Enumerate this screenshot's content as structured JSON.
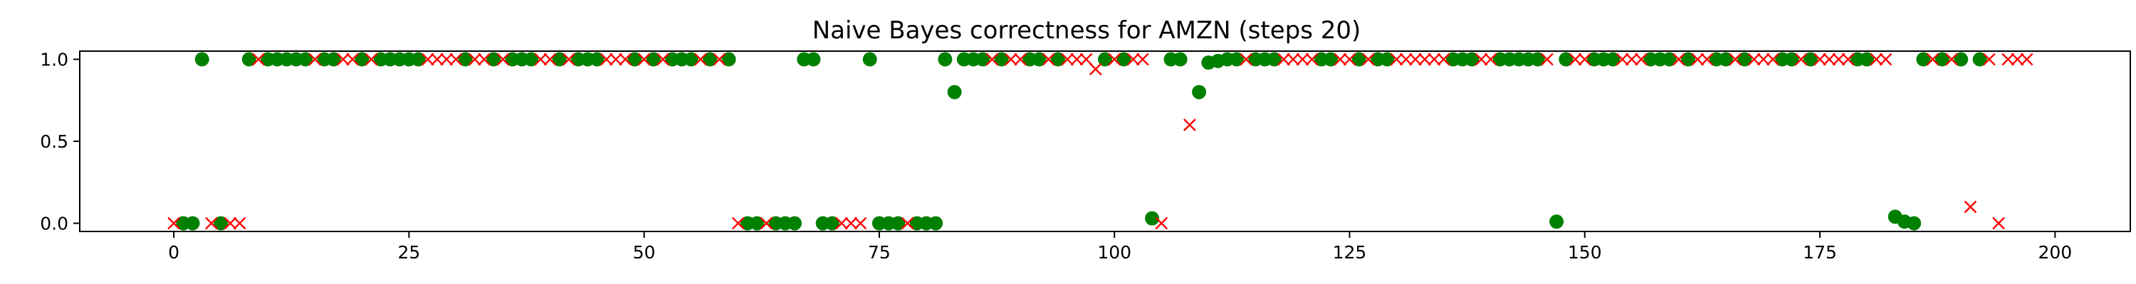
{
  "chart_data": {
    "type": "scatter",
    "title": "Naive Bayes correctness for AMZN (steps 20)",
    "xlabel": "",
    "ylabel": "",
    "xlim": [
      -10,
      208
    ],
    "ylim": [
      -0.05,
      1.05
    ],
    "x_ticks": [
      0,
      25,
      50,
      75,
      100,
      125,
      150,
      175,
      200
    ],
    "x_tick_labels": [
      "0",
      "25",
      "50",
      "75",
      "100",
      "125",
      "150",
      "175",
      "200"
    ],
    "y_ticks": [
      0.0,
      0.5,
      1.0
    ],
    "y_tick_labels": [
      "0.0",
      "0.5",
      "1.0"
    ],
    "grid": false,
    "legend": "none",
    "colors": {
      "correct": "#008000",
      "incorrect": "#ff0000"
    },
    "series": [
      {
        "marker": "circle",
        "color": "#008000",
        "x": [
          1,
          2,
          3,
          5,
          8,
          10,
          11,
          12,
          13,
          14,
          16,
          17,
          20,
          22,
          23,
          24,
          25,
          26,
          31,
          34,
          36,
          37,
          38,
          41,
          43,
          44,
          45,
          49,
          51,
          53,
          54,
          55,
          57,
          59,
          61,
          62,
          64,
          65,
          66,
          67,
          68,
          69,
          70,
          74,
          75,
          76,
          77,
          79,
          80,
          81,
          82,
          83,
          84,
          85,
          86,
          88,
          91,
          92,
          94,
          99,
          101,
          104,
          106,
          107,
          109,
          110,
          111,
          112,
          113,
          115,
          116,
          117,
          122,
          123,
          126,
          128,
          129,
          136,
          137,
          138,
          141,
          142,
          143,
          144,
          145,
          147,
          148,
          151,
          152,
          153,
          157,
          158,
          159,
          161,
          164,
          165,
          167,
          171,
          172,
          174,
          179,
          180,
          183,
          184,
          185,
          186,
          188,
          190,
          192
        ],
        "y": [
          0,
          0,
          1,
          0,
          1,
          1,
          1,
          1,
          1,
          1,
          1,
          1,
          1,
          1,
          1,
          1,
          1,
          1,
          1,
          1,
          1,
          1,
          1,
          1,
          1,
          1,
          1,
          1,
          1,
          1,
          1,
          1,
          1,
          1,
          0,
          0,
          0,
          0,
          0,
          1,
          1,
          0,
          0,
          1,
          0,
          0,
          0,
          0,
          0,
          0,
          1,
          0.8,
          1,
          1,
          1,
          1,
          1,
          1,
          1,
          1,
          1,
          0.03,
          1,
          1,
          0.8,
          0.98,
          0.99,
          1,
          1,
          1,
          1,
          1,
          1,
          1,
          1,
          1,
          1,
          1,
          1,
          1,
          1,
          1,
          1,
          1,
          1,
          0.01,
          1,
          1,
          1,
          1,
          1,
          1,
          1,
          1,
          1,
          1,
          1,
          1,
          1,
          1,
          1,
          1,
          0.04,
          0.01,
          0,
          1,
          1,
          1,
          1
        ]
      },
      {
        "marker": "x",
        "color": "#ff0000",
        "x": [
          0,
          4,
          6,
          7,
          9,
          15,
          18,
          19,
          21,
          27,
          28,
          29,
          30,
          32,
          33,
          35,
          39,
          40,
          42,
          46,
          47,
          48,
          50,
          52,
          56,
          58,
          60,
          63,
          71,
          72,
          73,
          78,
          87,
          89,
          90,
          93,
          95,
          96,
          97,
          98,
          100,
          102,
          103,
          105,
          108,
          114,
          118,
          119,
          120,
          121,
          124,
          125,
          127,
          130,
          131,
          132,
          133,
          134,
          135,
          139,
          140,
          146,
          149,
          150,
          154,
          155,
          156,
          160,
          162,
          163,
          166,
          168,
          169,
          170,
          173,
          175,
          176,
          177,
          178,
          181,
          182,
          187,
          189,
          191,
          193,
          194,
          195,
          196,
          197
        ],
        "y": [
          0,
          0,
          0,
          0,
          1,
          1,
          1,
          1,
          1,
          1,
          1,
          1,
          1,
          1,
          1,
          1,
          1,
          1,
          1,
          1,
          1,
          1,
          1,
          1,
          1,
          1,
          0,
          0,
          0,
          0,
          0,
          0,
          1,
          1,
          1,
          1,
          1,
          1,
          1,
          0.94,
          1,
          1,
          1,
          0,
          0.6,
          1,
          1,
          1,
          1,
          1,
          1,
          1,
          1,
          1,
          1,
          1,
          1,
          1,
          1,
          1,
          1,
          1,
          1,
          1,
          1,
          1,
          1,
          1,
          1,
          1,
          1,
          1,
          1,
          1,
          1,
          1,
          1,
          1,
          1,
          1,
          1,
          1,
          1,
          0.1,
          1,
          0,
          1,
          1,
          1
        ]
      }
    ]
  }
}
